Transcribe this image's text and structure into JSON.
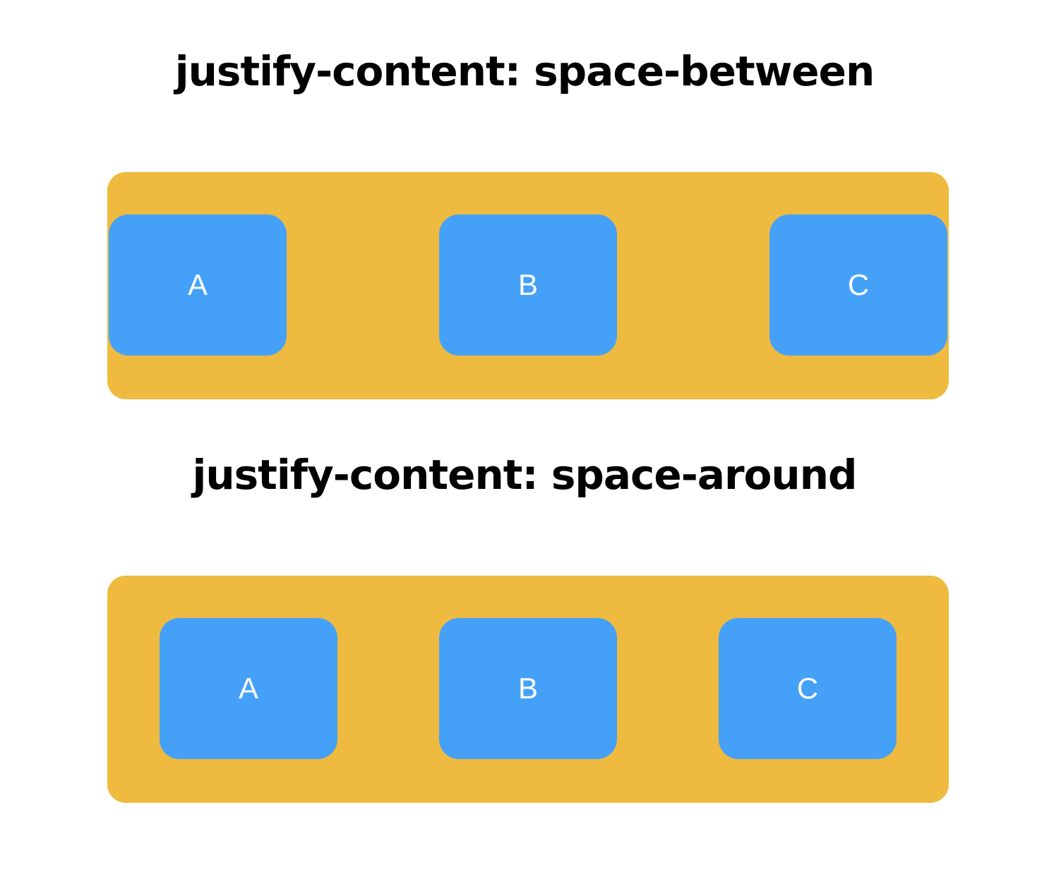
{
  "colors": {
    "container": "#EEBB40",
    "item": "#45A1F8"
  },
  "sections": [
    {
      "title": "justify-content: space-between",
      "items": [
        "A",
        "B",
        "C"
      ]
    },
    {
      "title": "justify-content: space-around",
      "items": [
        "A",
        "B",
        "C"
      ]
    }
  ]
}
